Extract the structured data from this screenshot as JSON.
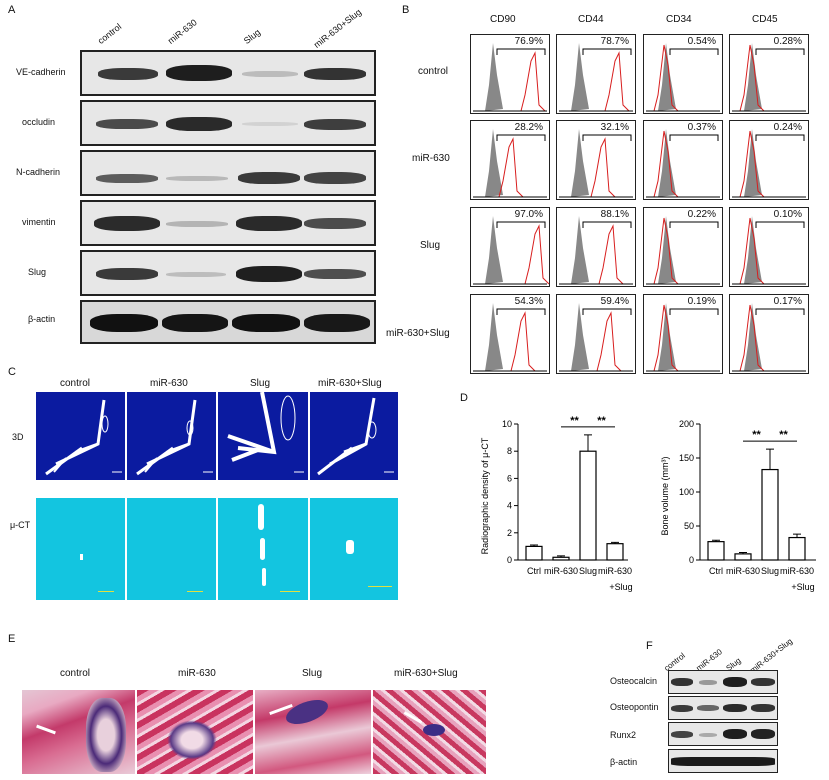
{
  "panel_labels": {
    "A": "A",
    "B": "B",
    "C": "C",
    "D": "D",
    "E": "E",
    "F": "F"
  },
  "panelA": {
    "columns": [
      "control",
      "miR-630",
      "Slug",
      "miR-630+Slug"
    ],
    "rows": [
      "VE-cadherin",
      "occludin",
      "N-cadherin",
      "vimentin",
      "Slug",
      "β-actin"
    ]
  },
  "panelB": {
    "markers": [
      "CD90",
      "CD44",
      "CD34",
      "CD45"
    ],
    "rows": [
      {
        "label": "control",
        "values": [
          "76.9%",
          "78.7%",
          "0.54%",
          "0.28%"
        ]
      },
      {
        "label": "miR-630",
        "values": [
          "28.2%",
          "32.1%",
          "0.37%",
          "0.24%"
        ]
      },
      {
        "label": "Slug",
        "values": [
          "97.0%",
          "88.1%",
          "0.22%",
          "0.10%"
        ]
      },
      {
        "label": "miR-630+Slug",
        "values": [
          "54.3%",
          "59.4%",
          "0.19%",
          "0.17%"
        ]
      }
    ]
  },
  "panelC": {
    "columns": [
      "control",
      "miR-630",
      "Slug",
      "miR-630+Slug"
    ],
    "row_labels": [
      "3D",
      "μ-CT"
    ]
  },
  "chart_data": [
    {
      "type": "bar",
      "categories": [
        "Ctrl",
        "miR-630",
        "Slug",
        "miR-630\n+Slug"
      ],
      "values": [
        1.0,
        0.2,
        8.0,
        1.2
      ],
      "errors": [
        0.1,
        0.1,
        1.2,
        0.1
      ],
      "ylabel": "Radiographic density of μ-CT",
      "ylim": [
        0,
        10
      ],
      "yticks": [
        "0",
        "2",
        "4",
        "6",
        "8",
        "10"
      ],
      "annotations": [
        "**",
        "**"
      ]
    },
    {
      "type": "bar",
      "categories": [
        "Ctrl",
        "miR-630",
        "Slug",
        "miR-630\n+Slug"
      ],
      "values": [
        27,
        9,
        133,
        33
      ],
      "errors": [
        2,
        2,
        30,
        5
      ],
      "ylabel": "Bone volume (mm³)",
      "ylim": [
        0,
        200
      ],
      "yticks": [
        "0",
        "50",
        "100",
        "150",
        "200"
      ],
      "annotations": [
        "**",
        "**"
      ]
    }
  ],
  "panelD_xlabels": {
    "c1": "Ctrl",
    "c2": "miR-630",
    "c3": "Slug",
    "c4a": "miR-630",
    "c4b": "+Slug"
  },
  "panelE": {
    "columns": [
      "control",
      "miR-630",
      "Slug",
      "miR-630+Slug"
    ]
  },
  "panelF": {
    "columns": [
      "control",
      "miR-630",
      "Slug",
      "miR-630+Slug"
    ],
    "rows": [
      "Osteocalcin",
      "Osteopontin",
      "Runx2",
      "β-actin"
    ]
  }
}
